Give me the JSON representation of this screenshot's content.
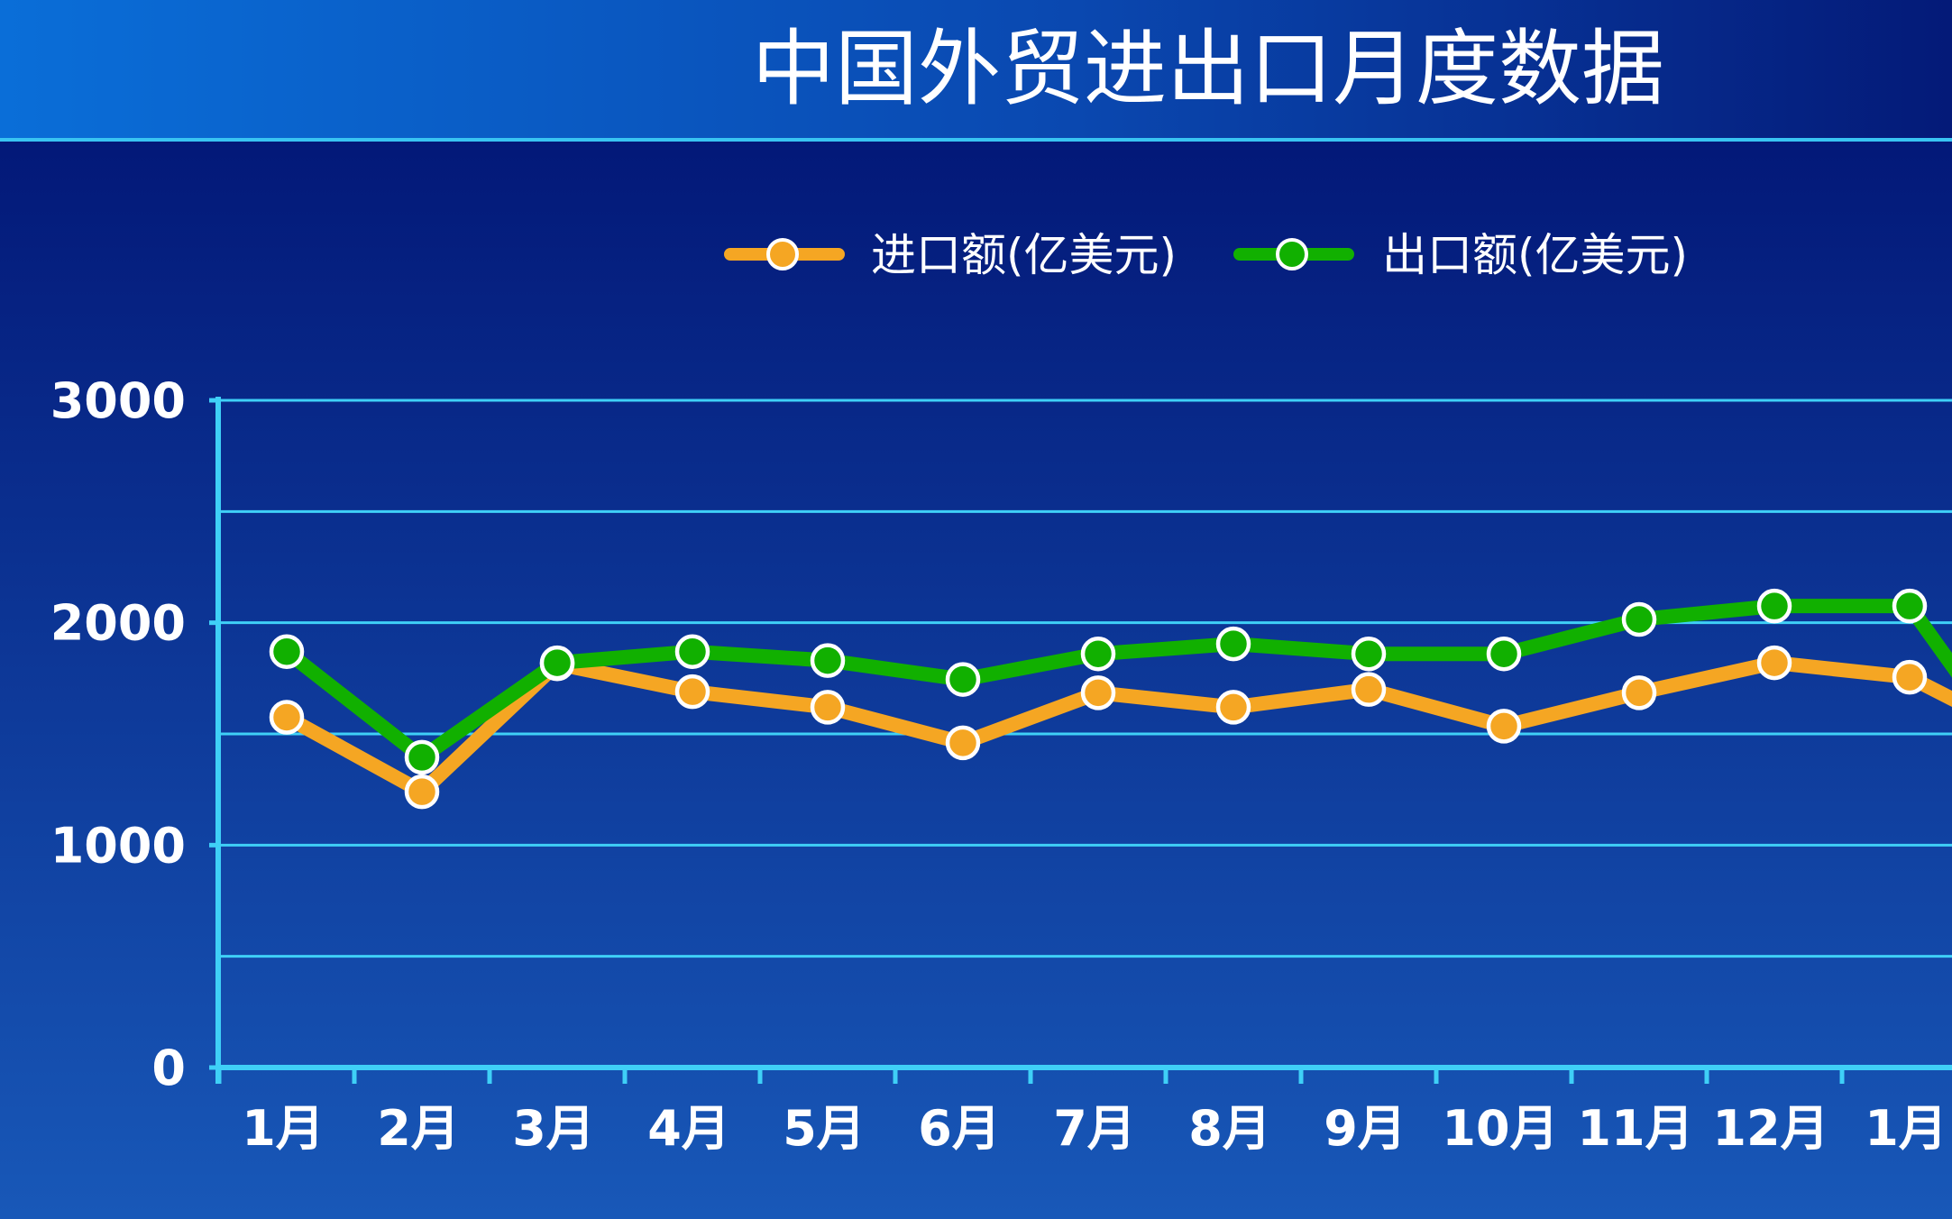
{
  "chart_data": {
    "type": "line",
    "title": "中国外贸进出口月度数据",
    "xlabel": "",
    "ylabel": "",
    "categories": [
      "1月",
      "2月",
      "3月",
      "4月",
      "5月",
      "6月",
      "7月",
      "8月",
      "9月",
      "10月",
      "11月",
      "12月",
      "1月"
    ],
    "ylim": [
      0,
      3000
    ],
    "yticks": [
      0,
      1000,
      2000,
      3000
    ],
    "grid": true,
    "legend_position": "top",
    "series": [
      {
        "name": "进口额(亿美元)",
        "color": "#f5a623",
        "values": [
          1575,
          1240,
          1815,
          1690,
          1620,
          1460,
          1685,
          1620,
          1700,
          1535,
          1685,
          1820,
          1755
        ]
      },
      {
        "name": "出口额(亿美元)",
        "color": "#11b000",
        "values": [
          1870,
          1395,
          1820,
          1870,
          1830,
          1745,
          1860,
          1905,
          1860,
          1860,
          2015,
          2075,
          2075
        ]
      }
    ],
    "continuation_color": "#11b000"
  }
}
